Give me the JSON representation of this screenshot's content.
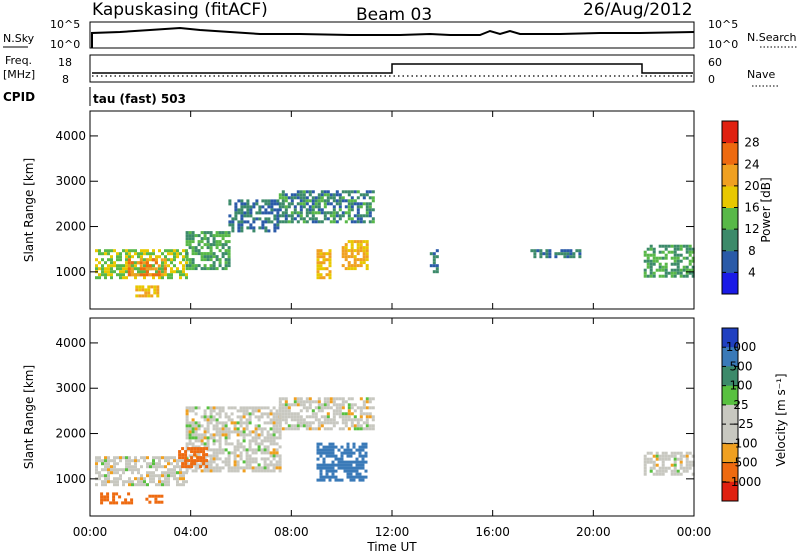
{
  "header": {
    "station": "Kapuskasing (fitACF)",
    "beam": "Beam 03",
    "date": "26/Aug/2012"
  },
  "strip_panels": {
    "nsky_label": "N.Sky",
    "nsky_ticks": [
      "10^5",
      "10^0"
    ],
    "nsearch_label": "N.Search",
    "nsearch_ticks": [
      "10^5",
      "10^0"
    ],
    "freq_label_1": "Freq.",
    "freq_label_2": "[MHz]",
    "freq_ticks": [
      "18",
      "8"
    ],
    "nave_label": "Nave",
    "nave_ticks": [
      "60",
      "0"
    ],
    "cpid_label": "CPID",
    "cpid_text": "tau (fast) 503"
  },
  "chart_data": [
    {
      "type": "heatmap",
      "title": "",
      "xlabel": "Time UT",
      "ylabel": "Slant Range [km]",
      "x_ticks": [
        "00:00",
        "04:00",
        "08:00",
        "12:00",
        "16:00",
        "20:00",
        "00:00"
      ],
      "xlim": [
        0,
        24
      ],
      "y_ticks": [
        "1000",
        "2000",
        "3000",
        "4000"
      ],
      "ylim": [
        180,
        4550
      ],
      "colorbar_label": "Power [dB]",
      "colorbar_ticks": [
        "4",
        "8",
        "12",
        "16",
        "20",
        "24",
        "28"
      ],
      "colorbar_colors": [
        "#1a1ae6",
        "#2a5aa8",
        "#3c8a6a",
        "#58b848",
        "#e8c800",
        "#f0a020",
        "#ee6a10",
        "#e02010"
      ],
      "regions": [
        {
          "t0": 0.2,
          "t1": 3.8,
          "r0": 900,
          "r1": 1500,
          "level": 16
        },
        {
          "t0": 1.5,
          "t1": 3.0,
          "r0": 950,
          "r1": 1300,
          "level": 24
        },
        {
          "t0": 3.8,
          "t1": 5.5,
          "r0": 1100,
          "r1": 1900,
          "level": 12
        },
        {
          "t0": 5.5,
          "t1": 7.5,
          "r0": 1900,
          "r1": 2600,
          "level": 8
        },
        {
          "t0": 7.5,
          "t1": 11.2,
          "r0": 2100,
          "r1": 2800,
          "level": 10
        },
        {
          "t0": 9.0,
          "t1": 9.5,
          "r0": 900,
          "r1": 1500,
          "level": 20
        },
        {
          "t0": 10.0,
          "t1": 11.0,
          "r0": 1100,
          "r1": 1700,
          "level": 20
        },
        {
          "t0": 1.8,
          "t1": 2.7,
          "r0": 450,
          "r1": 700,
          "level": 20
        },
        {
          "t0": 13.5,
          "t1": 13.8,
          "r0": 1000,
          "r1": 1500,
          "level": 8
        },
        {
          "t0": 17.5,
          "t1": 19.5,
          "r0": 1350,
          "r1": 1500,
          "level": 8
        },
        {
          "t0": 22.0,
          "t1": 24.0,
          "r0": 900,
          "r1": 1600,
          "level": 12
        }
      ]
    },
    {
      "type": "heatmap",
      "title": "",
      "xlabel": "Time UT",
      "ylabel": "Slant Range [km]",
      "x_ticks": [
        "00:00",
        "04:00",
        "08:00",
        "12:00",
        "16:00",
        "20:00",
        "00:00"
      ],
      "xlim": [
        0,
        24
      ],
      "y_ticks": [
        "1000",
        "2000",
        "3000",
        "4000"
      ],
      "ylim": [
        180,
        4550
      ],
      "colorbar_label": "Velocity [m s⁻¹]",
      "colorbar_ticks": [
        "1000",
        "500",
        "100",
        "25",
        "−25",
        "−100",
        "−500",
        "−1000"
      ],
      "colorbar_colors": [
        "#2040c0",
        "#3a7ab8",
        "#3c8a6a",
        "#58c040",
        "#c8c8c0",
        "#c8c8c0",
        "#f0a020",
        "#ee6a10",
        "#e02010"
      ],
      "regions": [
        {
          "t0": 0.2,
          "t1": 3.8,
          "r0": 900,
          "r1": 1500,
          "velocity": 0
        },
        {
          "t0": 3.8,
          "t1": 7.5,
          "r0": 1200,
          "r1": 2600,
          "velocity": 0
        },
        {
          "t0": 7.5,
          "t1": 11.2,
          "r0": 2100,
          "r1": 2800,
          "velocity": 0
        },
        {
          "t0": 3.5,
          "t1": 4.6,
          "r0": 1300,
          "r1": 1700,
          "velocity": -300
        },
        {
          "t0": 0.4,
          "t1": 1.6,
          "r0": 450,
          "r1": 700,
          "velocity": -300
        },
        {
          "t0": 2.2,
          "t1": 2.8,
          "r0": 480,
          "r1": 650,
          "velocity": -300
        },
        {
          "t0": 9.0,
          "t1": 11.0,
          "r0": 1000,
          "r1": 1800,
          "velocity": 200
        },
        {
          "t0": 22.0,
          "t1": 24.0,
          "r0": 1100,
          "r1": 1600,
          "velocity": 0
        }
      ]
    }
  ]
}
